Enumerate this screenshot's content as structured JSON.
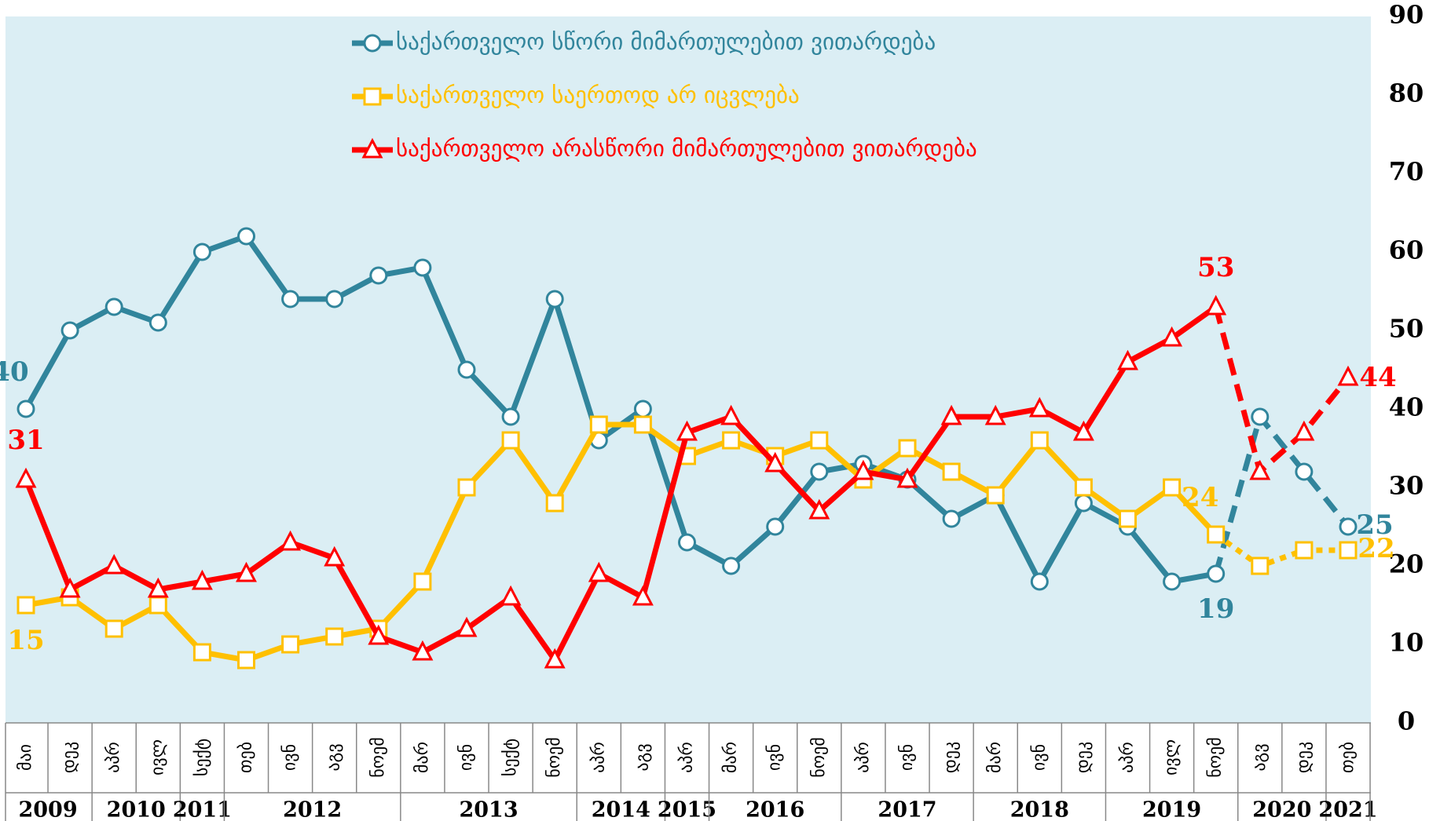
{
  "chart_data": {
    "type": "line",
    "categories": [
      "მაი",
      "დეკ",
      "აპრ",
      "ივლ",
      "სექტ",
      "თებ",
      "ივნ",
      "აგვ",
      "ნოემ",
      "მარ",
      "ივნ",
      "სექტ",
      "ნოემ",
      "აპრ",
      "აგვ",
      "აპრ",
      "მარ",
      "ივნ",
      "ნოემ",
      "აპრ",
      "ივნ",
      "დეკ",
      "მარ",
      "ივნ",
      "დეკ",
      "აპრ",
      "ივლ",
      "ნოემ",
      "აგვ",
      "დეკ",
      "თებ"
    ],
    "year_groups": [
      {
        "label": "2009",
        "span": 2
      },
      {
        "label": "2010",
        "span": 2
      },
      {
        "label": "2011",
        "span": 1
      },
      {
        "label": "2012",
        "span": 4
      },
      {
        "label": "2013",
        "span": 4
      },
      {
        "label": "2014",
        "span": 2
      },
      {
        "label": "2015",
        "span": 1
      },
      {
        "label": "2016",
        "span": 3
      },
      {
        "label": "2017",
        "span": 3
      },
      {
        "label": "2018",
        "span": 3
      },
      {
        "label": "2019",
        "span": 3
      },
      {
        "label": "2020",
        "span": 2
      },
      {
        "label": "2021",
        "span": 1
      }
    ],
    "series": [
      {
        "name": "საქართველო სწორი მიმართულებით ვითარდება",
        "color": "#31859c",
        "marker": "circle",
        "values": [
          40,
          50,
          53,
          51,
          60,
          62,
          54,
          54,
          57,
          58,
          45,
          39,
          54,
          36,
          40,
          23,
          20,
          25,
          32,
          33,
          31,
          26,
          29,
          18,
          28,
          25,
          18,
          19,
          39,
          32,
          25
        ],
        "labeled": [
          0,
          27,
          30
        ]
      },
      {
        "name": "საქართველო საერთოდ არ იცვლება",
        "color": "#ffc000",
        "marker": "square",
        "values": [
          15,
          16,
          12,
          15,
          9,
          8,
          10,
          11,
          12,
          18,
          30,
          36,
          28,
          38,
          38,
          34,
          36,
          34,
          36,
          31,
          35,
          32,
          29,
          36,
          30,
          26,
          30,
          24,
          20,
          22,
          22
        ],
        "labeled": [
          0,
          27,
          30
        ]
      },
      {
        "name": "საქართველო არასწორი მიმართულებით ვითარდება",
        "color": "#ff0000",
        "marker": "triangle",
        "values": [
          31,
          17,
          20,
          17,
          18,
          19,
          23,
          21,
          11,
          9,
          12,
          16,
          8,
          19,
          16,
          37,
          39,
          33,
          27,
          32,
          31,
          39,
          39,
          40,
          37,
          46,
          49,
          53,
          32,
          37,
          44
        ],
        "labeled": [
          0,
          27,
          30
        ]
      }
    ],
    "dashed_from": 27,
    "ylim": [
      0,
      90
    ],
    "yticks": [
      0,
      10,
      20,
      30,
      40,
      50,
      60,
      70,
      80,
      90
    ],
    "grid": false,
    "legend": "top"
  }
}
